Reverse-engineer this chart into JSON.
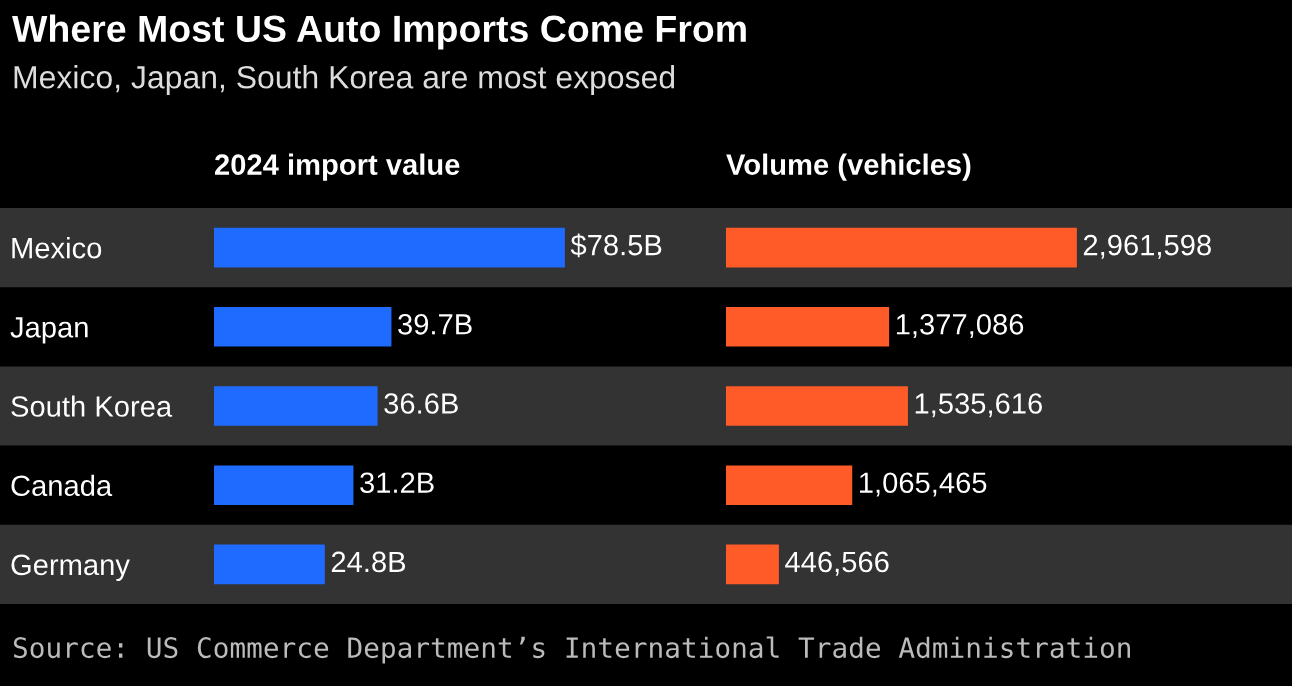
{
  "chart_data": [
    {
      "type": "bar",
      "orientation": "horizontal",
      "title": "Where Most US Auto Imports Come From",
      "subtitle": "Mexico, Japan, South Korea are most exposed",
      "xlabel": "2024 import value",
      "categories": [
        "Mexico",
        "Japan",
        "South Korea",
        "Canada",
        "Germany"
      ],
      "values": [
        78.5,
        39.7,
        36.6,
        31.2,
        24.8
      ],
      "value_labels": [
        "$78.5B",
        "39.7B",
        "36.6B",
        "31.2B",
        "24.8B"
      ],
      "color": "#1f6bff",
      "tick_labels": "y",
      "grid": false,
      "legend": false,
      "annotations": [
        "Source: US Commerce Department’s International Trade Administration"
      ]
    },
    {
      "type": "bar",
      "orientation": "horizontal",
      "xlabel": "Volume (vehicles)",
      "categories": [
        null,
        null,
        null,
        null,
        null
      ],
      "values": [
        2961598,
        1377086,
        1535616,
        1065465,
        446566
      ],
      "value_labels": [
        "2,961,598",
        "1,377,086",
        "1,535,616",
        "1,065,465",
        "446,566"
      ],
      "color": "#ff5b29",
      "tick_labels": false,
      "grid": false,
      "legend": false
    }
  ]
}
